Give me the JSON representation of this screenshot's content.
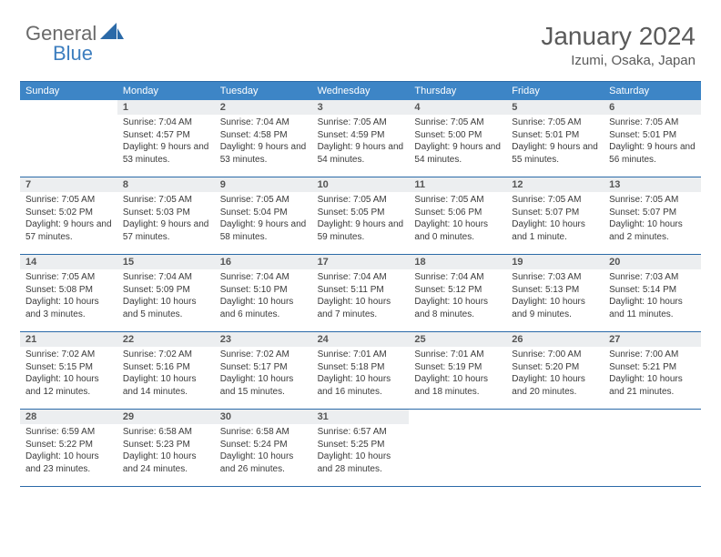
{
  "brand": {
    "part1": "General",
    "part2": "Blue"
  },
  "colors": {
    "header_bar": "#3d85c6",
    "rule": "#2b6aa8",
    "daynum_bg": "#eceef0",
    "text": "#3a3a3a",
    "title": "#5a5a5a",
    "logo_gray": "#6a6a6a",
    "logo_blue": "#3d7ebf"
  },
  "title": "January 2024",
  "location": "Izumi, Osaka, Japan",
  "weekdays": [
    "Sunday",
    "Monday",
    "Tuesday",
    "Wednesday",
    "Thursday",
    "Friday",
    "Saturday"
  ],
  "weeks": [
    [
      null,
      {
        "n": "1",
        "sr": "Sunrise: 7:04 AM",
        "ss": "Sunset: 4:57 PM",
        "dl": "Daylight: 9 hours and 53 minutes."
      },
      {
        "n": "2",
        "sr": "Sunrise: 7:04 AM",
        "ss": "Sunset: 4:58 PM",
        "dl": "Daylight: 9 hours and 53 minutes."
      },
      {
        "n": "3",
        "sr": "Sunrise: 7:05 AM",
        "ss": "Sunset: 4:59 PM",
        "dl": "Daylight: 9 hours and 54 minutes."
      },
      {
        "n": "4",
        "sr": "Sunrise: 7:05 AM",
        "ss": "Sunset: 5:00 PM",
        "dl": "Daylight: 9 hours and 54 minutes."
      },
      {
        "n": "5",
        "sr": "Sunrise: 7:05 AM",
        "ss": "Sunset: 5:01 PM",
        "dl": "Daylight: 9 hours and 55 minutes."
      },
      {
        "n": "6",
        "sr": "Sunrise: 7:05 AM",
        "ss": "Sunset: 5:01 PM",
        "dl": "Daylight: 9 hours and 56 minutes."
      }
    ],
    [
      {
        "n": "7",
        "sr": "Sunrise: 7:05 AM",
        "ss": "Sunset: 5:02 PM",
        "dl": "Daylight: 9 hours and 57 minutes."
      },
      {
        "n": "8",
        "sr": "Sunrise: 7:05 AM",
        "ss": "Sunset: 5:03 PM",
        "dl": "Daylight: 9 hours and 57 minutes."
      },
      {
        "n": "9",
        "sr": "Sunrise: 7:05 AM",
        "ss": "Sunset: 5:04 PM",
        "dl": "Daylight: 9 hours and 58 minutes."
      },
      {
        "n": "10",
        "sr": "Sunrise: 7:05 AM",
        "ss": "Sunset: 5:05 PM",
        "dl": "Daylight: 9 hours and 59 minutes."
      },
      {
        "n": "11",
        "sr": "Sunrise: 7:05 AM",
        "ss": "Sunset: 5:06 PM",
        "dl": "Daylight: 10 hours and 0 minutes."
      },
      {
        "n": "12",
        "sr": "Sunrise: 7:05 AM",
        "ss": "Sunset: 5:07 PM",
        "dl": "Daylight: 10 hours and 1 minute."
      },
      {
        "n": "13",
        "sr": "Sunrise: 7:05 AM",
        "ss": "Sunset: 5:07 PM",
        "dl": "Daylight: 10 hours and 2 minutes."
      }
    ],
    [
      {
        "n": "14",
        "sr": "Sunrise: 7:05 AM",
        "ss": "Sunset: 5:08 PM",
        "dl": "Daylight: 10 hours and 3 minutes."
      },
      {
        "n": "15",
        "sr": "Sunrise: 7:04 AM",
        "ss": "Sunset: 5:09 PM",
        "dl": "Daylight: 10 hours and 5 minutes."
      },
      {
        "n": "16",
        "sr": "Sunrise: 7:04 AM",
        "ss": "Sunset: 5:10 PM",
        "dl": "Daylight: 10 hours and 6 minutes."
      },
      {
        "n": "17",
        "sr": "Sunrise: 7:04 AM",
        "ss": "Sunset: 5:11 PM",
        "dl": "Daylight: 10 hours and 7 minutes."
      },
      {
        "n": "18",
        "sr": "Sunrise: 7:04 AM",
        "ss": "Sunset: 5:12 PM",
        "dl": "Daylight: 10 hours and 8 minutes."
      },
      {
        "n": "19",
        "sr": "Sunrise: 7:03 AM",
        "ss": "Sunset: 5:13 PM",
        "dl": "Daylight: 10 hours and 9 minutes."
      },
      {
        "n": "20",
        "sr": "Sunrise: 7:03 AM",
        "ss": "Sunset: 5:14 PM",
        "dl": "Daylight: 10 hours and 11 minutes."
      }
    ],
    [
      {
        "n": "21",
        "sr": "Sunrise: 7:02 AM",
        "ss": "Sunset: 5:15 PM",
        "dl": "Daylight: 10 hours and 12 minutes."
      },
      {
        "n": "22",
        "sr": "Sunrise: 7:02 AM",
        "ss": "Sunset: 5:16 PM",
        "dl": "Daylight: 10 hours and 14 minutes."
      },
      {
        "n": "23",
        "sr": "Sunrise: 7:02 AM",
        "ss": "Sunset: 5:17 PM",
        "dl": "Daylight: 10 hours and 15 minutes."
      },
      {
        "n": "24",
        "sr": "Sunrise: 7:01 AM",
        "ss": "Sunset: 5:18 PM",
        "dl": "Daylight: 10 hours and 16 minutes."
      },
      {
        "n": "25",
        "sr": "Sunrise: 7:01 AM",
        "ss": "Sunset: 5:19 PM",
        "dl": "Daylight: 10 hours and 18 minutes."
      },
      {
        "n": "26",
        "sr": "Sunrise: 7:00 AM",
        "ss": "Sunset: 5:20 PM",
        "dl": "Daylight: 10 hours and 20 minutes."
      },
      {
        "n": "27",
        "sr": "Sunrise: 7:00 AM",
        "ss": "Sunset: 5:21 PM",
        "dl": "Daylight: 10 hours and 21 minutes."
      }
    ],
    [
      {
        "n": "28",
        "sr": "Sunrise: 6:59 AM",
        "ss": "Sunset: 5:22 PM",
        "dl": "Daylight: 10 hours and 23 minutes."
      },
      {
        "n": "29",
        "sr": "Sunrise: 6:58 AM",
        "ss": "Sunset: 5:23 PM",
        "dl": "Daylight: 10 hours and 24 minutes."
      },
      {
        "n": "30",
        "sr": "Sunrise: 6:58 AM",
        "ss": "Sunset: 5:24 PM",
        "dl": "Daylight: 10 hours and 26 minutes."
      },
      {
        "n": "31",
        "sr": "Sunrise: 6:57 AM",
        "ss": "Sunset: 5:25 PM",
        "dl": "Daylight: 10 hours and 28 minutes."
      },
      null,
      null,
      null
    ]
  ]
}
